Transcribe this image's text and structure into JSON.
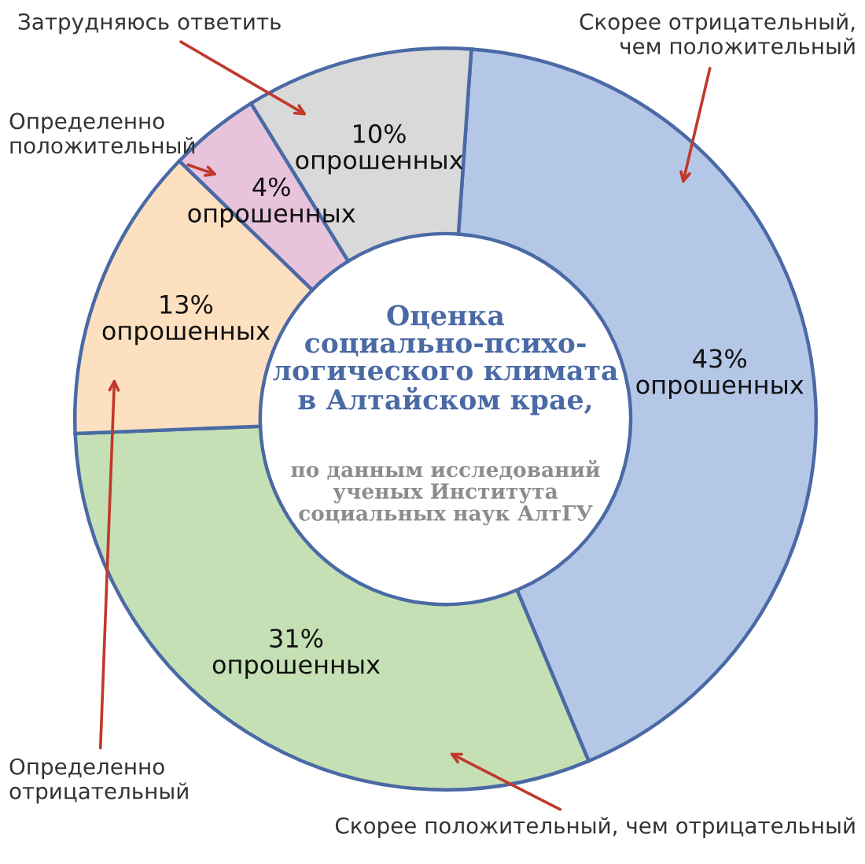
{
  "chart_data": {
    "type": "donut",
    "title": "Оценка\nсоциально-психо-\nлогического климата\nв Алтайском крае,",
    "subtitle": "по данным исследований\nученых Института\nсоциальных наук АлтГУ",
    "categories": [
      "Скорее отрицательный,\nчем положительный",
      "Скорее положительный, чем отрицательный",
      "Определенно\nотрицательный",
      "Определенно\nположительный",
      "Затрудняюсь ответить"
    ],
    "values": [
      43,
      31,
      13,
      4,
      10
    ],
    "colors": [
      "#b4c7e7",
      "#c5e0b4",
      "#fde0c0",
      "#e8c3dc",
      "#d9d9d9"
    ],
    "value_labels": [
      "43%\nопрошенных",
      "31%\nопрошенных",
      "13%\nопрошенных",
      "4%\nопрошенных",
      "10%\nопрошенных"
    ],
    "legend": false
  }
}
